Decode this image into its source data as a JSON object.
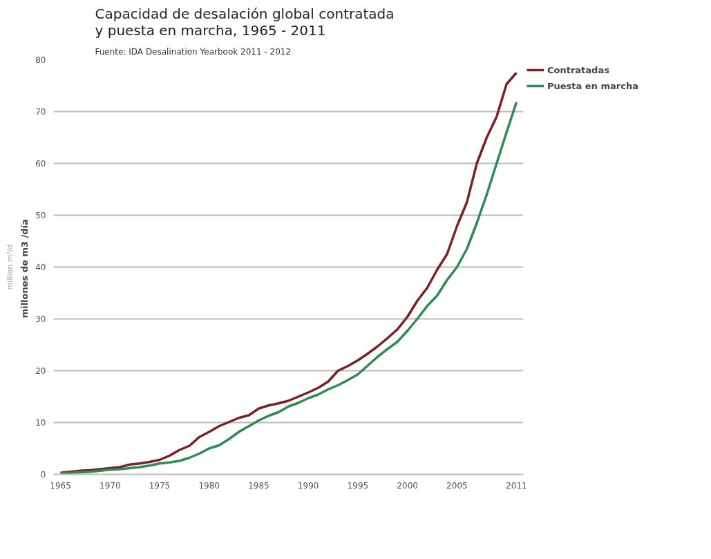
{
  "chart_data": {
    "type": "line",
    "title": "Capacidad de desalación global contratada\ny puesta en marcha, 1965 - 2011",
    "subtitle": "Fuente: IDA Desalination Yearbook 2011 - 2012",
    "ylabel": "millones de m3  /día",
    "annotations": [
      "million m³/d"
    ],
    "x": [
      1965,
      1966,
      1967,
      1968,
      1969,
      1970,
      1971,
      1972,
      1973,
      1974,
      1975,
      1976,
      1977,
      1978,
      1979,
      1980,
      1981,
      1982,
      1983,
      1984,
      1985,
      1986,
      1987,
      1988,
      1989,
      1990,
      1991,
      1992,
      1993,
      1994,
      1995,
      1996,
      1997,
      1998,
      1999,
      2000,
      2001,
      2002,
      2003,
      2004,
      2005,
      2006,
      2007,
      2008,
      2009,
      2010,
      2011
    ],
    "series": [
      {
        "name": "Contratadas",
        "color": "#7b2126",
        "values": [
          0.3,
          0.5,
          0.7,
          0.8,
          1.0,
          1.2,
          1.4,
          1.9,
          2.1,
          2.4,
          2.8,
          3.6,
          4.7,
          5.5,
          7.2,
          8.2,
          9.3,
          10.1,
          10.9,
          11.4,
          12.7,
          13.3,
          13.7,
          14.2,
          15.0,
          15.8,
          16.7,
          17.9,
          20.0,
          20.9,
          22.0,
          23.3,
          24.7,
          26.3,
          28.0,
          30.4,
          33.5,
          36.0,
          39.5,
          42.5,
          47.9,
          52.5,
          60.0,
          65.0,
          69.0,
          75.3,
          77.5
        ]
      },
      {
        "name": "Puesta en marcha",
        "color": "#2e8b57",
        "values": [
          0.2,
          0.3,
          0.4,
          0.5,
          0.7,
          0.9,
          1.0,
          1.2,
          1.4,
          1.7,
          2.1,
          2.3,
          2.6,
          3.2,
          4.0,
          5.0,
          5.6,
          6.8,
          8.2,
          9.3,
          10.4,
          11.3,
          12.0,
          13.1,
          13.8,
          14.7,
          15.4,
          16.4,
          17.2,
          18.2,
          19.3,
          21.0,
          22.7,
          24.2,
          25.6,
          27.7,
          30.0,
          32.5,
          34.5,
          37.5,
          40.0,
          43.5,
          48.5,
          54.0,
          60.0,
          66.0,
          71.8
        ]
      }
    ],
    "xlim": [
      1964.3,
      2011.7
    ],
    "xticks": [
      1965,
      1970,
      1975,
      1980,
      1985,
      1990,
      1995,
      2000,
      2005,
      2011
    ],
    "ylim": [
      0,
      80
    ],
    "yticks": [
      0,
      10,
      20,
      30,
      40,
      50,
      60,
      70,
      80
    ],
    "grid": "y",
    "legend": "top right",
    "marker": "none",
    "line_style": "solid"
  }
}
